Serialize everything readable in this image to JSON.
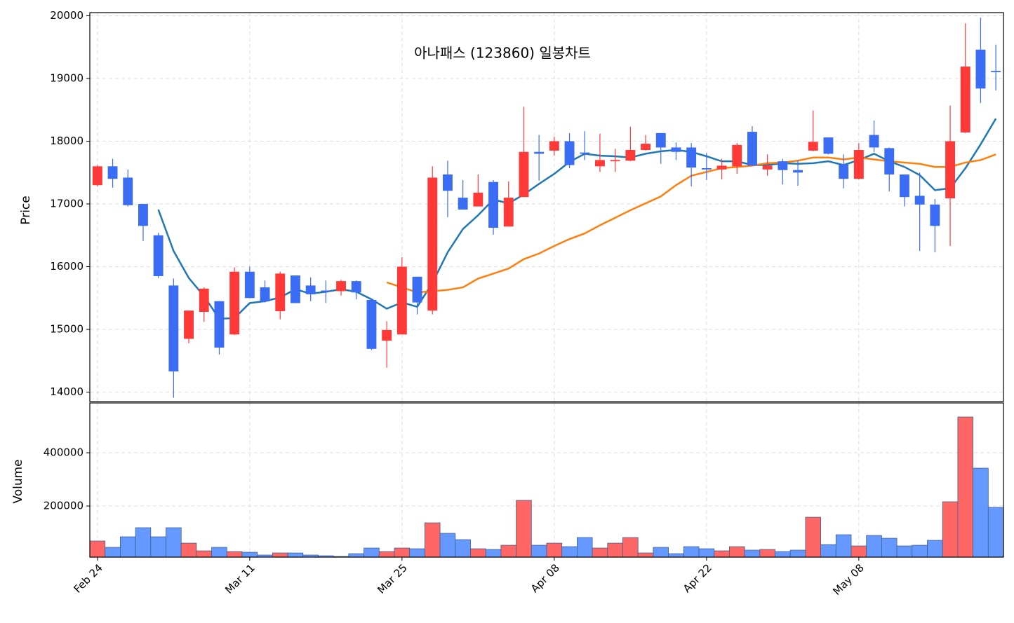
{
  "chart_data": [
    {
      "type": "candlestick",
      "title": "아나패스 (123860) 일봉차트",
      "ylabel": "Price",
      "open": [
        17300,
        17600,
        17420,
        17000,
        16500,
        15700,
        14850,
        15280,
        15450,
        14920,
        15920,
        15670,
        15290,
        15860,
        15700,
        15620,
        15610,
        15770,
        15470,
        14820,
        14920,
        15840,
        15300,
        17470,
        17100,
        16960,
        17350,
        16640,
        17110,
        17830,
        17850,
        18000,
        17820,
        17600,
        17680,
        17690,
        17860,
        18130,
        17900,
        17900,
        17570,
        17550,
        17600,
        18150,
        17550,
        17680,
        17540,
        17850,
        18060,
        17630,
        17400,
        18100,
        17890,
        17470,
        17130,
        16990,
        17090,
        18140,
        19460,
        19120
      ],
      "high": [
        17620,
        17720,
        17550,
        17000,
        16540,
        15810,
        15300,
        15670,
        15450,
        15990,
        16000,
        15780,
        15920,
        15860,
        15830,
        15780,
        15790,
        15780,
        15480,
        15130,
        16150,
        15840,
        17600,
        17690,
        17380,
        17470,
        17380,
        17360,
        18550,
        18100,
        18070,
        18130,
        18160,
        18120,
        17880,
        18230,
        18100,
        18130,
        17980,
        17970,
        17810,
        17720,
        17970,
        18240,
        17790,
        17720,
        17700,
        18490,
        18060,
        17790,
        17970,
        18330,
        17900,
        17470,
        17500,
        17080,
        18570,
        19880,
        19970,
        19540
      ],
      "low": [
        17280,
        17260,
        16960,
        16410,
        15820,
        13910,
        14780,
        15120,
        14600,
        14910,
        15500,
        15430,
        15160,
        15420,
        15450,
        15420,
        15540,
        15480,
        14670,
        14390,
        14920,
        15240,
        15240,
        16790,
        16910,
        16960,
        16510,
        16640,
        17110,
        17370,
        17770,
        17570,
        17700,
        17510,
        17510,
        17680,
        17850,
        17640,
        17700,
        17280,
        17380,
        17390,
        17480,
        17610,
        17450,
        17310,
        17290,
        17840,
        17790,
        17250,
        17390,
        17830,
        17200,
        16960,
        16250,
        16230,
        16330,
        18130,
        18610,
        18810
      ],
      "close": [
        17600,
        17400,
        16980,
        16650,
        15850,
        14330,
        15300,
        15650,
        14710,
        15920,
        15500,
        15450,
        15890,
        15420,
        15560,
        15600,
        15770,
        15590,
        14690,
        14990,
        16000,
        15430,
        17420,
        17210,
        16910,
        17180,
        16620,
        17100,
        17830,
        17800,
        18000,
        17620,
        17800,
        17700,
        17700,
        17860,
        17960,
        17900,
        17830,
        17580,
        17550,
        17610,
        17940,
        17610,
        17610,
        17540,
        17500,
        17990,
        17800,
        17400,
        17860,
        17900,
        17470,
        17110,
        16990,
        16650,
        18000,
        19190,
        18840,
        19100
      ],
      "up_color": "#ff3838",
      "down_color": "#3a6cf4",
      "lines": [
        {
          "color": "#1f77b4",
          "values": [
            null,
            null,
            null,
            null,
            16910,
            16250,
            15820,
            15530,
            15170,
            15180,
            15420,
            15450,
            15510,
            15640,
            15570,
            15600,
            15640,
            15600,
            15480,
            15330,
            15430,
            15360,
            15740,
            16230,
            16600,
            16820,
            17070,
            17010,
            17150,
            17320,
            17480,
            17670,
            17800,
            17770,
            17760,
            17740,
            17800,
            17840,
            17860,
            17830,
            17760,
            17680,
            17680,
            17620,
            17620,
            17650,
            17640,
            17650,
            17680,
            17620,
            17700,
            17800,
            17680,
            17590,
            17460,
            17220,
            17250,
            17570,
            17950,
            18360
          ]
        },
        {
          "color": "#ff7f0e",
          "values": [
            null,
            null,
            null,
            null,
            null,
            null,
            null,
            null,
            null,
            null,
            null,
            null,
            null,
            null,
            null,
            null,
            null,
            null,
            null,
            15750,
            15670,
            15590,
            15610,
            15630,
            15670,
            15810,
            15890,
            15970,
            16120,
            16210,
            16330,
            16440,
            16530,
            16660,
            16780,
            16900,
            17010,
            17120,
            17300,
            17450,
            17510,
            17570,
            17590,
            17610,
            17650,
            17660,
            17690,
            17740,
            17740,
            17710,
            17740,
            17710,
            17680,
            17660,
            17640,
            17590,
            17590,
            17660,
            17700,
            17790
          ]
        }
      ],
      "ylim": [
        13850,
        20050
      ],
      "yticks": [
        14000,
        15000,
        16000,
        17000,
        18000,
        19000,
        20000
      ],
      "grid": true
    },
    {
      "type": "bar",
      "ylabel": "Volume",
      "categories": [
        "Feb 24",
        null,
        null,
        null,
        null,
        null,
        null,
        null,
        null,
        null,
        "Mar 11",
        null,
        null,
        null,
        null,
        null,
        null,
        null,
        null,
        null,
        "Mar 25",
        null,
        null,
        null,
        null,
        null,
        null,
        null,
        null,
        null,
        "Apr 08",
        null,
        null,
        null,
        null,
        null,
        null,
        null,
        null,
        null,
        "Apr 22",
        null,
        null,
        null,
        null,
        null,
        null,
        null,
        null,
        null,
        "May 08",
        null,
        null,
        null,
        null,
        null,
        null,
        null,
        null,
        null
      ],
      "values": [
        68400,
        44700,
        84200,
        118400,
        84200,
        118400,
        60500,
        31600,
        44700,
        28900,
        26300,
        15800,
        23600,
        23600,
        15800,
        13100,
        10500,
        21000,
        42100,
        28900,
        42100,
        39400,
        136800,
        97400,
        73700,
        39400,
        36800,
        52600,
        221100,
        52600,
        60500,
        47300,
        81600,
        42100,
        60500,
        81600,
        23600,
        44700,
        21000,
        47300,
        39400,
        31600,
        47300,
        34200,
        36800,
        28900,
        34200,
        157900,
        55200,
        92100,
        50000,
        89500,
        78900,
        50000,
        52600,
        71000,
        215800,
        534300,
        342100,
        194700
      ],
      "up_color": "#ff6666",
      "down_color": "#6699ff",
      "ylim": [
        8000,
        587000
      ],
      "yticks": [
        200000,
        400000
      ],
      "grid": true
    }
  ]
}
